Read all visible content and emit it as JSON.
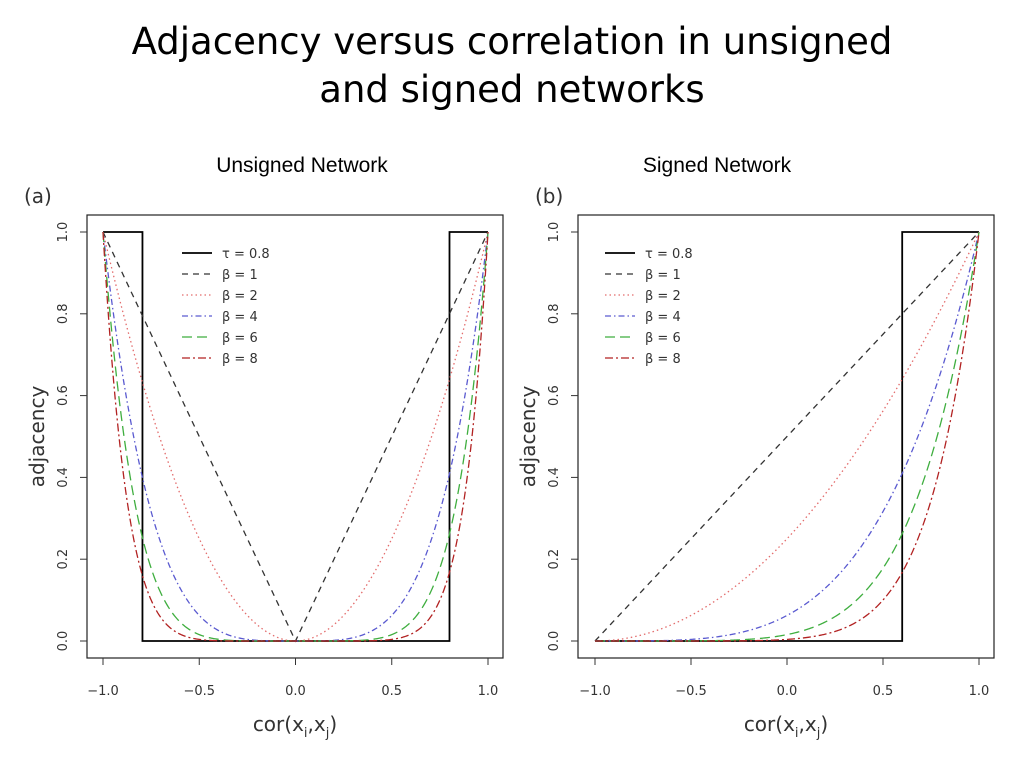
{
  "title_lines": [
    "Adjacency versus correlation in unsigned",
    "and signed networks"
  ],
  "chart_data": [
    {
      "type": "line",
      "panel": "(a)",
      "title": "Unsigned Network",
      "xlabel": "cor(x_i, x_j)",
      "ylabel": "adjacency",
      "xlim": [
        -1.0,
        1.0
      ],
      "ylim": [
        0.0,
        1.0
      ],
      "xticks": [
        "-1.0",
        "-0.5",
        "0.0",
        "0.5",
        "1.0"
      ],
      "yticks": [
        "0.0",
        "0.2",
        "0.4",
        "0.6",
        "0.8",
        "1.0"
      ],
      "legend_position": "top-center",
      "series": [
        {
          "name": "τ = 0.8",
          "kind": "hard",
          "tau": 0.8,
          "color": "#000000",
          "dash": ""
        },
        {
          "name": "β = 1",
          "kind": "soft",
          "beta": 1,
          "color": "#333333",
          "dash": "6,5"
        },
        {
          "name": "β = 2",
          "kind": "soft",
          "beta": 2,
          "color": "#e36c6c",
          "dash": "1.5,3"
        },
        {
          "name": "β = 4",
          "kind": "soft",
          "beta": 4,
          "color": "#5a5ad0",
          "dash": "6,3,1.5,3"
        },
        {
          "name": "β = 6",
          "kind": "soft",
          "beta": 6,
          "color": "#3fae3f",
          "dash": "10,5"
        },
        {
          "name": "β = 8",
          "kind": "soft",
          "beta": 8,
          "color": "#b22222",
          "dash": "8,3,2,3"
        }
      ]
    },
    {
      "type": "line",
      "panel": "(b)",
      "title": "Signed Network",
      "xlabel": "cor(x_i, x_j)",
      "ylabel": "adjacency",
      "xlim": [
        -1.0,
        1.0
      ],
      "ylim": [
        0.0,
        1.0
      ],
      "xticks": [
        "-1.0",
        "-0.5",
        "0.0",
        "0.5",
        "1.0"
      ],
      "yticks": [
        "0.0",
        "0.2",
        "0.4",
        "0.6",
        "0.8",
        "1.0"
      ],
      "legend_position": "top-left",
      "series": [
        {
          "name": "τ = 0.8",
          "kind": "hard-signed",
          "tau": 0.8,
          "color": "#000000",
          "dash": ""
        },
        {
          "name": "β = 1",
          "kind": "signed",
          "beta": 1,
          "color": "#333333",
          "dash": "6,5"
        },
        {
          "name": "β = 2",
          "kind": "signed",
          "beta": 2,
          "color": "#e36c6c",
          "dash": "1.5,3"
        },
        {
          "name": "β = 4",
          "kind": "signed",
          "beta": 4,
          "color": "#5a5ad0",
          "dash": "6,3,1.5,3"
        },
        {
          "name": "β = 6",
          "kind": "signed",
          "beta": 6,
          "color": "#3fae3f",
          "dash": "10,5"
        },
        {
          "name": "β = 8",
          "kind": "signed",
          "beta": 8,
          "color": "#b22222",
          "dash": "8,3,2,3"
        }
      ]
    }
  ]
}
